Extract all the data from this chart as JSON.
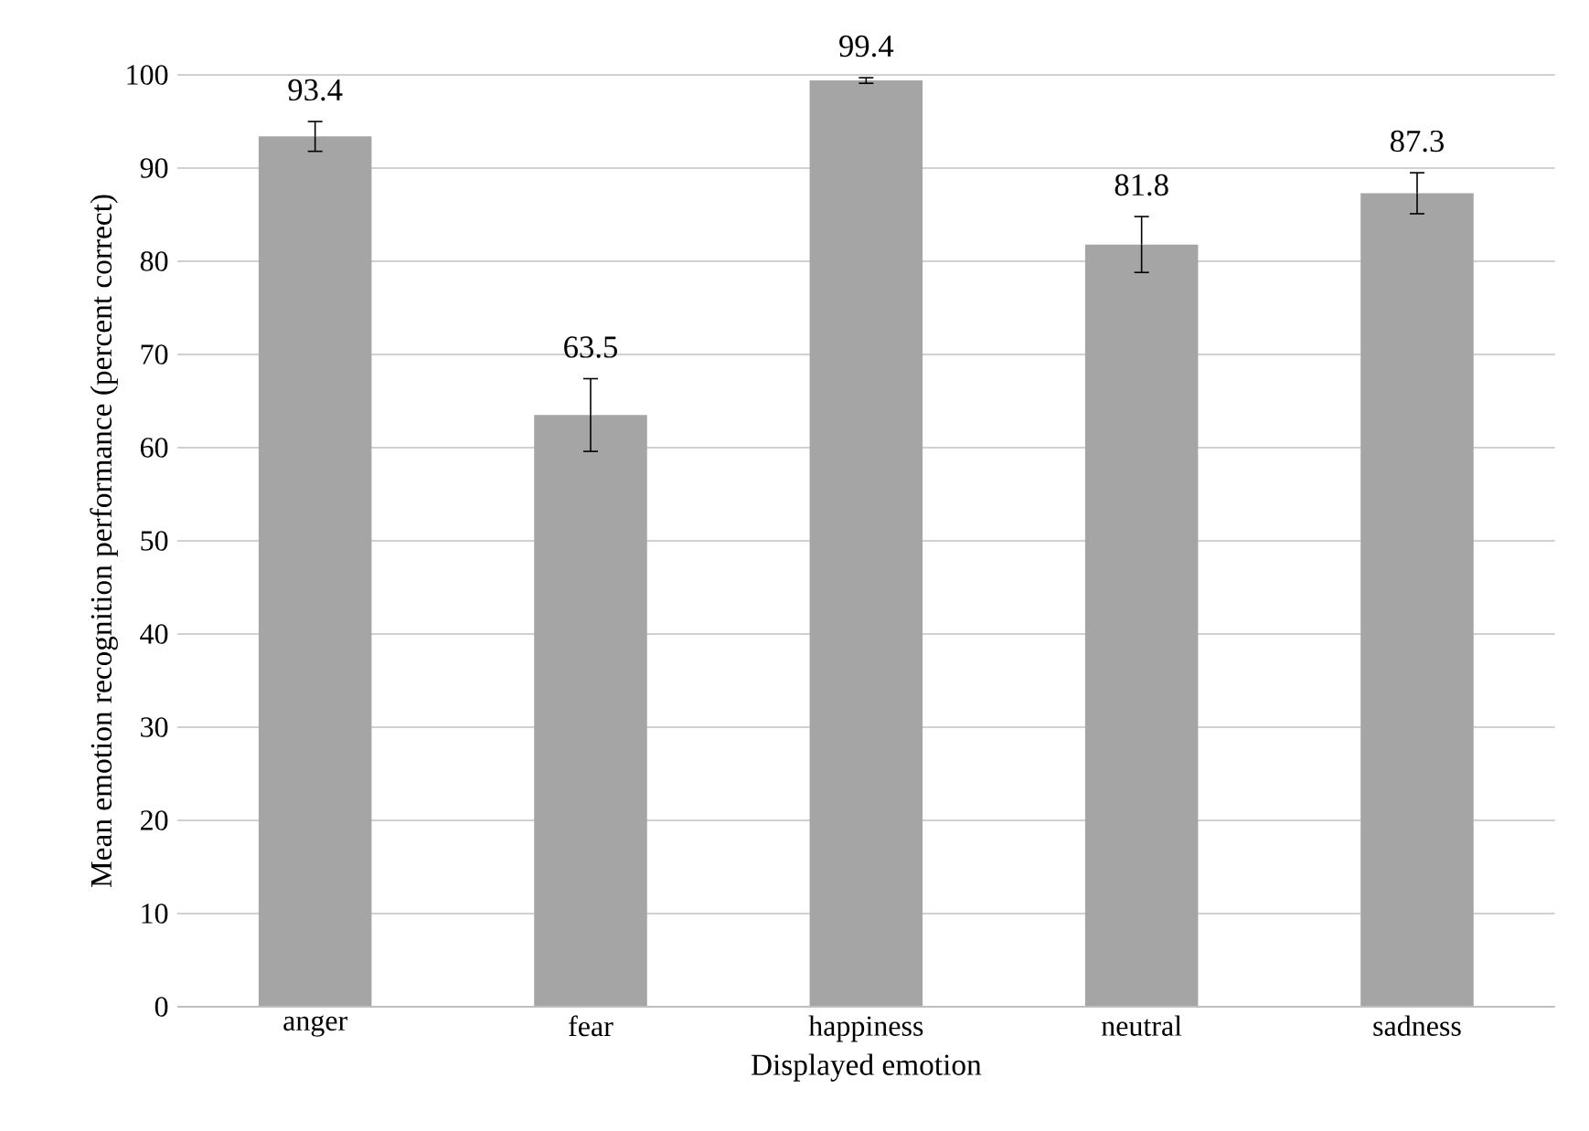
{
  "chart_data": {
    "type": "bar",
    "xlabel": "Displayed emotion",
    "ylabel": "Mean emotion recognition performance (percent correct)",
    "categories": [
      "anger",
      "fear",
      "happiness",
      "neutral",
      "sadness"
    ],
    "values": [
      93.4,
      63.5,
      99.4,
      81.8,
      87.3
    ],
    "errors": [
      1.6,
      3.9,
      0.3,
      3.0,
      2.2
    ],
    "color": "#a5a5a5",
    "ylim": [
      0,
      100
    ],
    "yticks": [
      0,
      10,
      20,
      30,
      40,
      50,
      60,
      70,
      80,
      90,
      100
    ],
    "grid": "y",
    "data_labels": true
  }
}
